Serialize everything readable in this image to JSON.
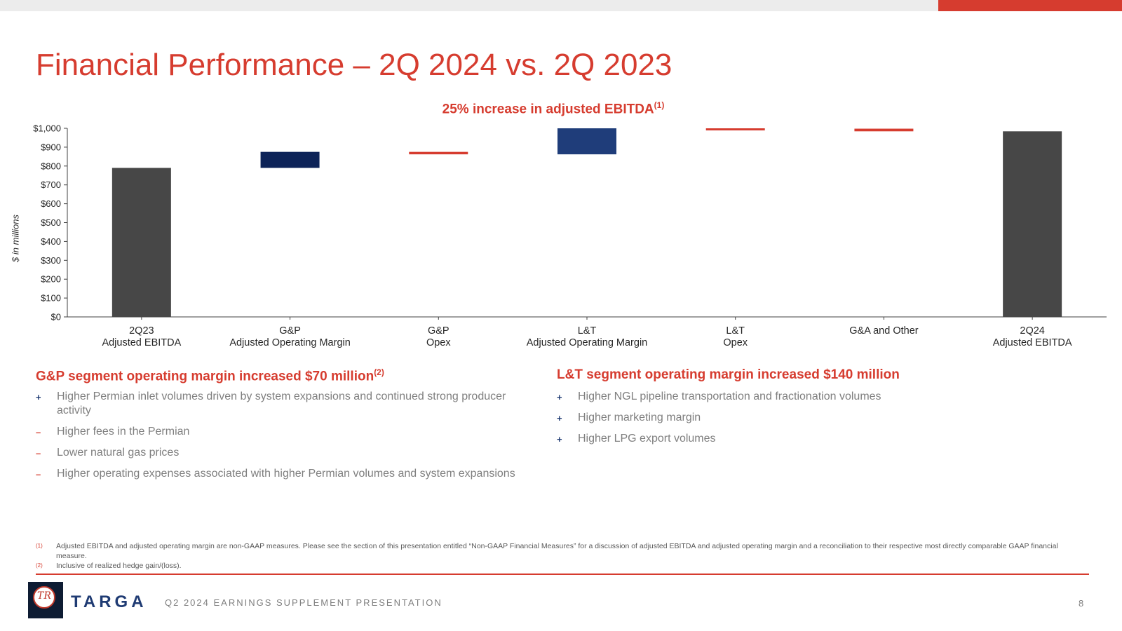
{
  "slide": {
    "title": "Financial Performance – 2Q 2024 vs. 2Q 2023",
    "subtitle": "25% increase in adjusted EBITDA",
    "subtitle_note": "(1)"
  },
  "chart_data": {
    "type": "bar",
    "subtype": "waterfall",
    "title": "25% increase in adjusted EBITDA(1)",
    "ylabel": "$ in millions",
    "xlabel": "",
    "ylim": [
      0,
      1000
    ],
    "yticks": [
      "$0",
      "$100",
      "$200",
      "$300",
      "$400",
      "$500",
      "$600",
      "$700",
      "$800",
      "$900",
      "$1,000"
    ],
    "categories": [
      [
        "2Q23",
        "Adjusted EBITDA"
      ],
      [
        "G&P",
        "Adjusted Operating Margin"
      ],
      [
        "G&P",
        "Opex"
      ],
      [
        "L&T",
        "Adjusted Operating Margin"
      ],
      [
        "L&T",
        "Opex"
      ],
      [
        "G&A and Other",
        ""
      ],
      [
        "2Q24",
        "Adjusted EBITDA"
      ]
    ],
    "bars": [
      {
        "kind": "total",
        "start": 0,
        "end": 790
      },
      {
        "kind": "increase",
        "start": 790,
        "end": 875
      },
      {
        "kind": "decrease",
        "start": 875,
        "end": 862
      },
      {
        "kind": "increase",
        "start": 862,
        "end": 1000
      },
      {
        "kind": "decrease",
        "start": 1000,
        "end": 998
      },
      {
        "kind": "decrease",
        "start": 998,
        "end": 984
      },
      {
        "kind": "total",
        "start": 0,
        "end": 984
      }
    ],
    "grid": false,
    "legend": "none",
    "colors": {
      "total": "#474747",
      "increase_first": "#0d2358",
      "increase_second": "#1f3d7a",
      "decrease": "#d63c2f",
      "axis": "#404040"
    }
  },
  "gp": {
    "heading": "G&P segment operating margin increased $70 million",
    "heading_note": "(2)",
    "items": [
      {
        "sign": "+",
        "text": "Higher Permian inlet volumes driven by system expansions and continued strong producer activity"
      },
      {
        "sign": "–",
        "text": "Higher fees in the Permian"
      },
      {
        "sign": "–",
        "text": "Lower natural gas prices"
      },
      {
        "sign": "–",
        "text": "Higher operating expenses associated with higher Permian volumes and system expansions"
      }
    ]
  },
  "lt": {
    "heading": "L&T segment operating margin increased $140 million",
    "items": [
      {
        "sign": "+",
        "text": "Higher NGL pipeline transportation and fractionation volumes"
      },
      {
        "sign": "+",
        "text": "Higher marketing margin"
      },
      {
        "sign": "+",
        "text": "Higher LPG export volumes"
      }
    ]
  },
  "footnotes": [
    {
      "num": "(1)",
      "text": "Adjusted EBITDA and adjusted operating margin are non-GAAP measures. Please see the section of this presentation entitled “Non-GAAP Financial Measures” for a discussion of adjusted EBITDA and adjusted operating margin and a reconciliation to their respective most directly comparable GAAP financial measure."
    },
    {
      "num": "(2)",
      "text": "Inclusive of realized hedge gain/(loss)."
    }
  ],
  "footer": {
    "brand": "TARGA",
    "logo_monogram": "TR",
    "presentation": "Q2 2024 EARNINGS SUPPLEMENT PRESENTATION",
    "page": "8"
  },
  "theme": {
    "accent": "#d63c2f",
    "navy": "#1f3b73"
  }
}
